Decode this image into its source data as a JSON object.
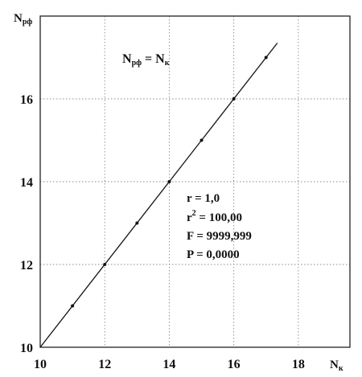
{
  "chart_data": {
    "type": "scatter",
    "xlabel": {
      "main": "N",
      "sub": "к"
    },
    "ylabel": {
      "main": "N",
      "sub": "рф"
    },
    "xlim": [
      10,
      19.6
    ],
    "ylim": [
      10,
      18
    ],
    "x_ticks": [
      10,
      12,
      14,
      16,
      18
    ],
    "y_ticks": [
      10,
      12,
      14,
      16
    ],
    "x_grid": [
      12,
      14,
      16,
      18
    ],
    "y_grid": [
      12,
      14,
      16
    ],
    "grid": true,
    "points": [
      {
        "x": 11,
        "y": 11
      },
      {
        "x": 12,
        "y": 12
      },
      {
        "x": 13,
        "y": 13
      },
      {
        "x": 14,
        "y": 14
      },
      {
        "x": 15,
        "y": 15
      },
      {
        "x": 16,
        "y": 16
      },
      {
        "x": 17,
        "y": 17
      }
    ],
    "fit_line": {
      "x": [
        10,
        17.35
      ],
      "y": [
        10,
        17.35
      ]
    },
    "equation": {
      "lhs_main": "N",
      "lhs_sub": "рф",
      "middle": " = N",
      "rhs_sub": "к"
    },
    "stats": [
      "r = 1,0",
      "F = 9999,999",
      "P = 0,0000"
    ],
    "r2": {
      "base": "r",
      "sup": "2",
      "rest": " = 100,00"
    }
  }
}
